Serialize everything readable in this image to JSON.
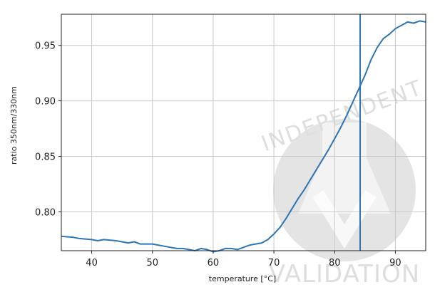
{
  "chart_data": {
    "type": "line",
    "xlabel": "temperature [°C]",
    "ylabel": "ratio 350nm/330nm",
    "xlim": [
      35,
      95
    ],
    "ylim": [
      0.765,
      0.978
    ],
    "x_ticks": [
      40,
      50,
      60,
      70,
      80,
      90
    ],
    "x_tick_labels": [
      "40",
      "50",
      "60",
      "70",
      "80",
      "90"
    ],
    "y_ticks": [
      0.8,
      0.85,
      0.9,
      0.95
    ],
    "y_tick_labels": [
      "0.80",
      "0.85",
      "0.90",
      "0.95"
    ],
    "grid": true,
    "series": [
      {
        "color": "#2e75b6",
        "x": [
          35,
          37,
          38,
          40,
          41,
          42,
          44,
          45,
          46,
          47,
          48,
          50,
          52,
          54,
          55,
          56,
          57,
          58,
          59,
          60,
          61,
          62,
          63,
          64,
          65,
          66,
          67,
          68,
          69,
          70,
          71,
          72,
          73,
          74,
          75,
          76,
          77,
          78,
          79,
          80,
          81,
          82,
          83,
          84,
          85,
          86,
          87,
          88,
          89,
          90,
          91,
          92,
          93,
          94,
          95
        ],
        "y": [
          0.778,
          0.777,
          0.776,
          0.775,
          0.774,
          0.775,
          0.774,
          0.773,
          0.772,
          0.773,
          0.771,
          0.771,
          0.769,
          0.767,
          0.767,
          0.766,
          0.765,
          0.767,
          0.766,
          0.764,
          0.765,
          0.767,
          0.767,
          0.766,
          0.768,
          0.77,
          0.771,
          0.772,
          0.775,
          0.78,
          0.786,
          0.794,
          0.803,
          0.812,
          0.82,
          0.829,
          0.838,
          0.847,
          0.856,
          0.866,
          0.876,
          0.887,
          0.899,
          0.911,
          0.923,
          0.937,
          0.948,
          0.956,
          0.96,
          0.965,
          0.968,
          0.971,
          0.97,
          0.972,
          0.971
        ]
      }
    ],
    "vertical_line": {
      "x": 84.2,
      "color": "#2e75b6"
    }
  },
  "watermark": {
    "top_text": "INDEPENDENT",
    "bottom_text": "VALIDATION",
    "color": "#dedede"
  }
}
